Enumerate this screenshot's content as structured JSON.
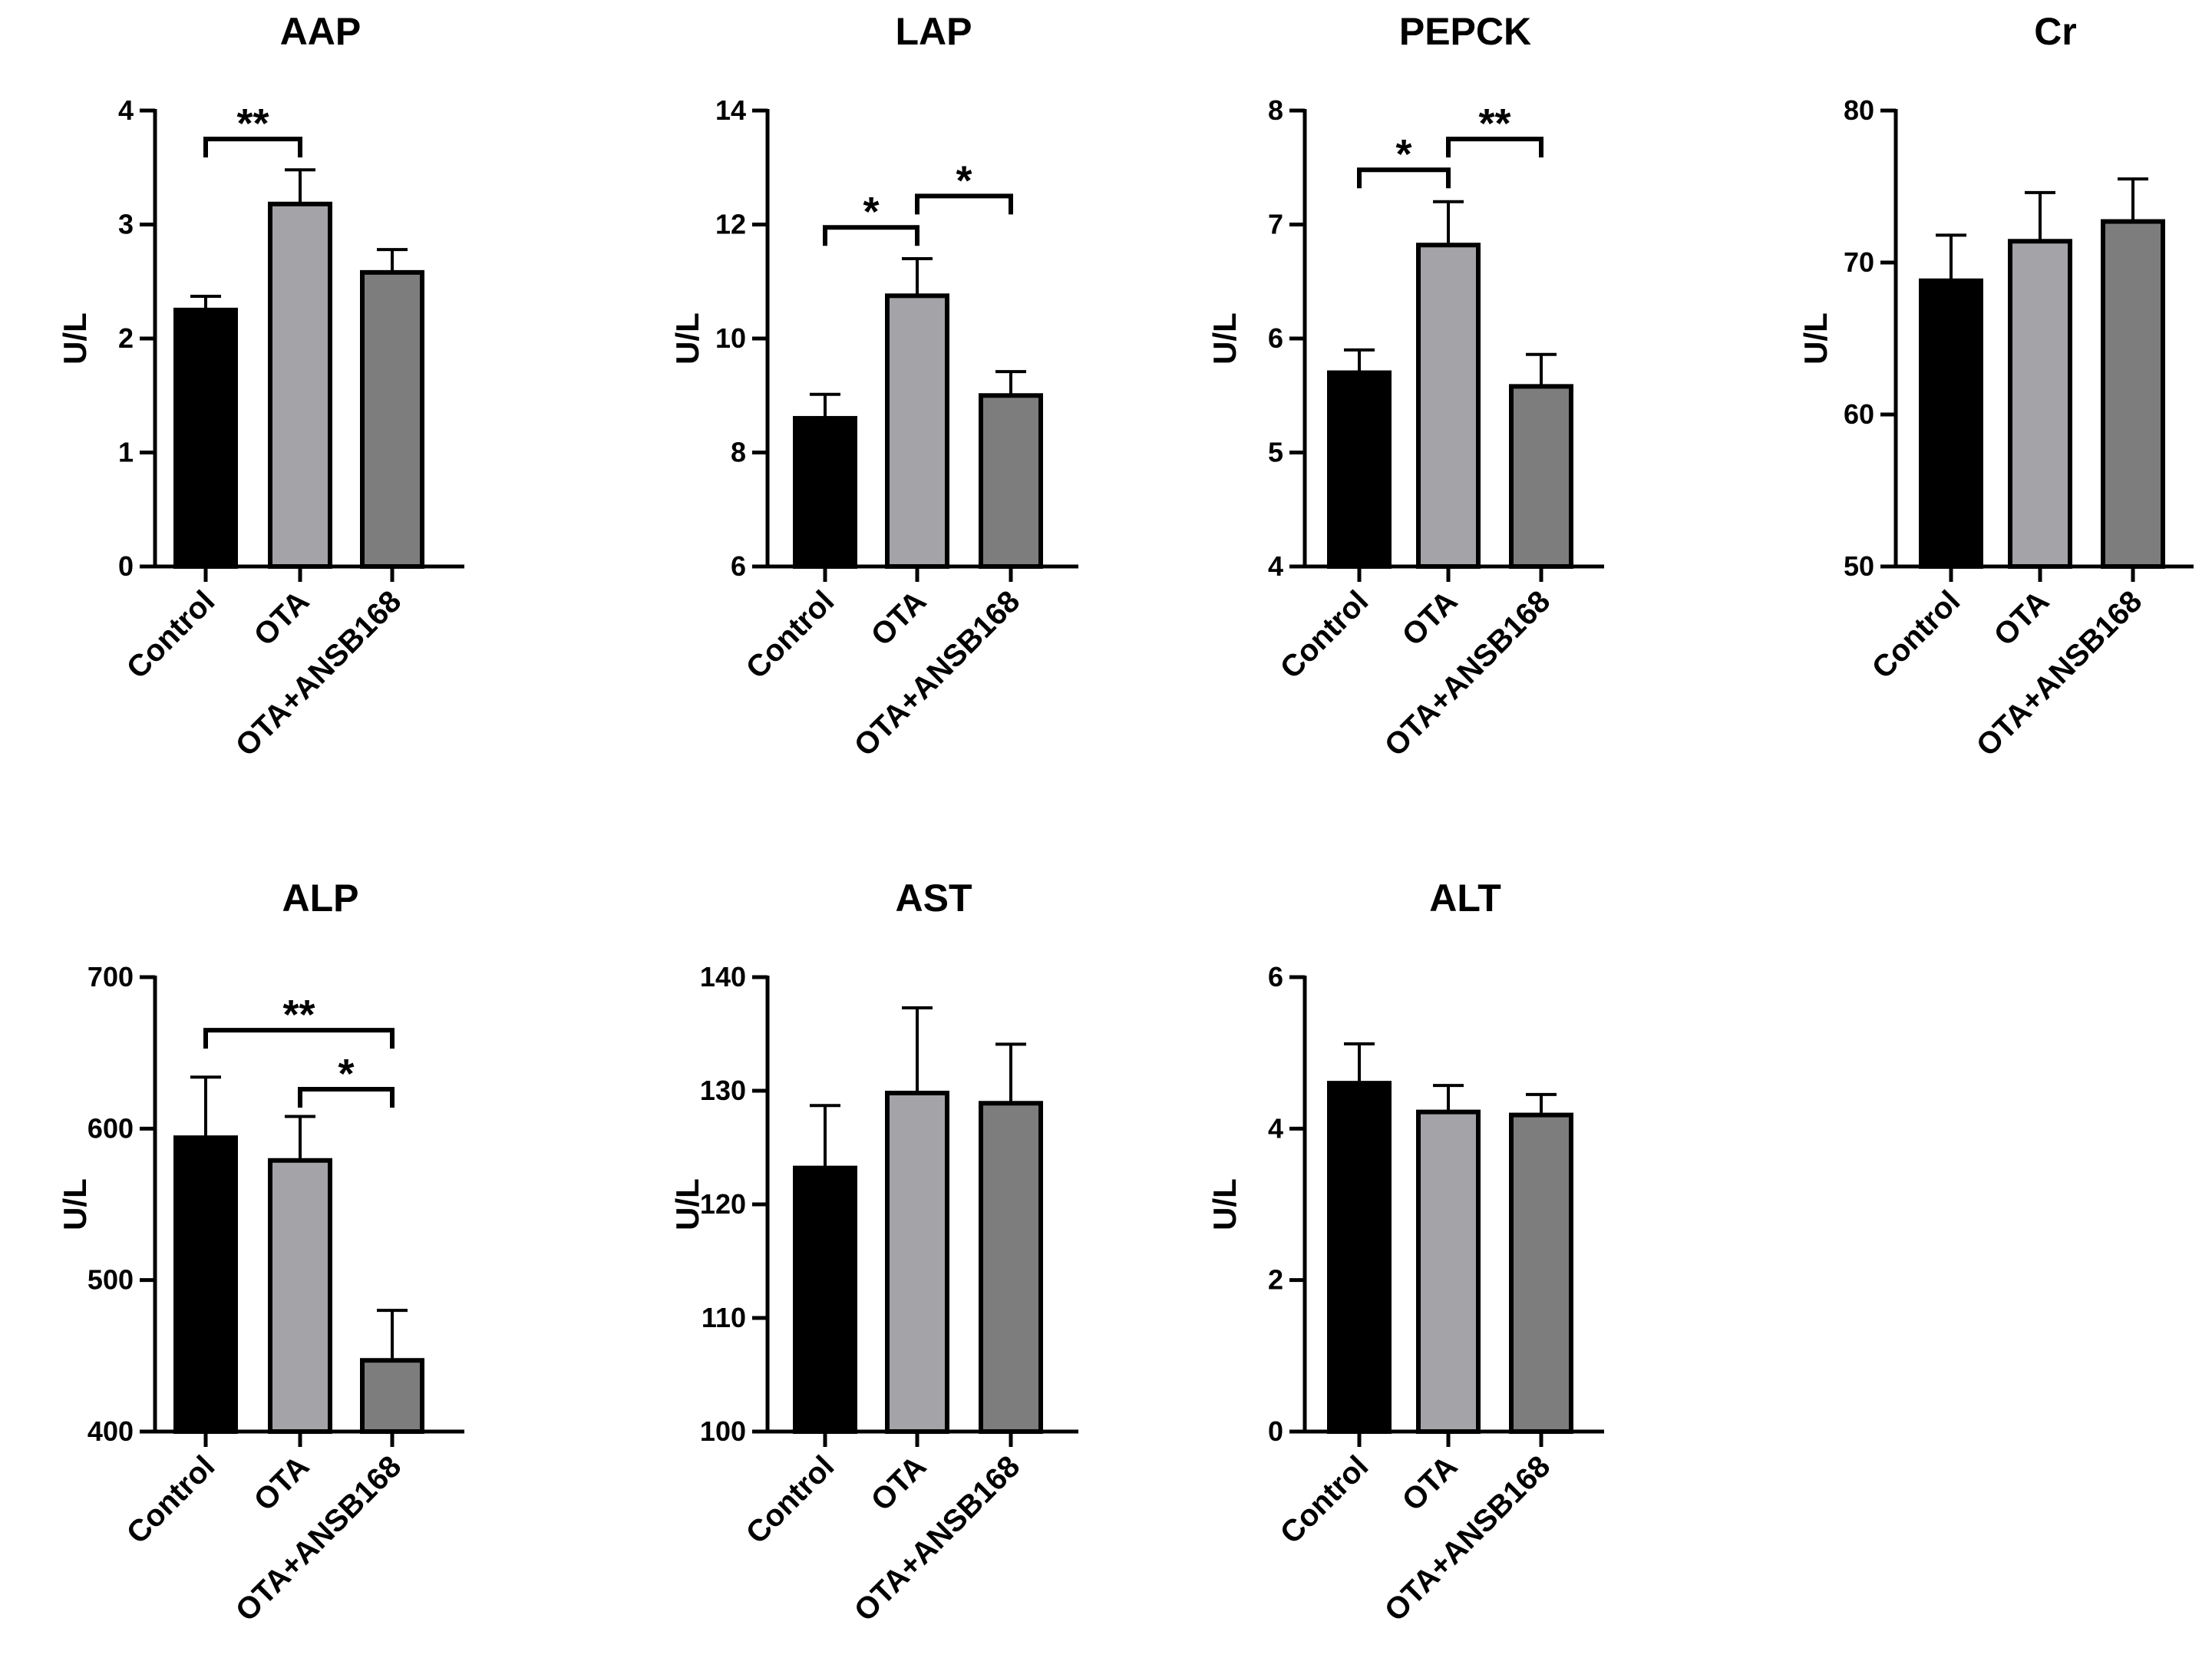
{
  "chart_data": [
    {
      "type": "bar",
      "title": "AAP",
      "ylabel": "U/L",
      "categories": [
        "Control",
        "OTA",
        "OTA+ANSB168"
      ],
      "values": [
        2.25,
        3.18,
        2.58
      ],
      "errors": [
        0.12,
        0.3,
        0.2
      ],
      "ylim": [
        0,
        4
      ],
      "yticks": [
        "0",
        "1",
        "2",
        "3",
        "4"
      ],
      "colors": [
        "#000000",
        "#a3a3a8",
        "#7d7d7d"
      ],
      "significance": [
        {
          "from": 0,
          "to": 1,
          "y": 3.75,
          "label": "**"
        }
      ]
    },
    {
      "type": "bar",
      "title": "LAP",
      "ylabel": "U/L",
      "categories": [
        "Control",
        "OTA",
        "OTA+ANSB168"
      ],
      "values": [
        8.6,
        10.75,
        9.0
      ],
      "errors": [
        0.42,
        0.65,
        0.42
      ],
      "ylim": [
        6,
        14
      ],
      "yticks": [
        "6",
        "8",
        "10",
        "12",
        "14"
      ],
      "colors": [
        "#000000",
        "#a3a3a8",
        "#7d7d7d"
      ],
      "significance": [
        {
          "from": 0,
          "to": 1,
          "y": 11.95,
          "label": "*"
        },
        {
          "from": 1,
          "to": 2,
          "y": 12.5,
          "label": "*"
        }
      ]
    },
    {
      "type": "bar",
      "title": "PEPCK",
      "ylabel": "U/L",
      "categories": [
        "Control",
        "OTA",
        "OTA+ANSB168"
      ],
      "values": [
        5.7,
        6.82,
        5.58
      ],
      "errors": [
        0.2,
        0.38,
        0.28
      ],
      "ylim": [
        4,
        8
      ],
      "yticks": [
        "4",
        "5",
        "6",
        "7",
        "8"
      ],
      "colors": [
        "#000000",
        "#a3a3a8",
        "#7d7d7d"
      ],
      "significance": [
        {
          "from": 0,
          "to": 1,
          "y": 7.48,
          "label": "*"
        },
        {
          "from": 1,
          "to": 2,
          "y": 7.75,
          "label": "**"
        }
      ]
    },
    {
      "type": "bar",
      "title": "Cr",
      "ylabel": "U/L",
      "categories": [
        "Control",
        "OTA",
        "OTA+ANSB168"
      ],
      "values": [
        68.8,
        71.4,
        72.7
      ],
      "errors": [
        3.0,
        3.2,
        2.8
      ],
      "ylim": [
        50,
        80
      ],
      "yticks": [
        "50",
        "60",
        "70",
        "80"
      ],
      "colors": [
        "#000000",
        "#a3a3a8",
        "#7d7d7d"
      ],
      "significance": []
    },
    {
      "type": "bar",
      "title": "ALP",
      "ylabel": "U/L",
      "categories": [
        "Control",
        "OTA",
        "OTA+ANSB168"
      ],
      "values": [
        594,
        579,
        447
      ],
      "errors": [
        40,
        29,
        33
      ],
      "ylim": [
        400,
        700
      ],
      "yticks": [
        "400",
        "500",
        "600",
        "700"
      ],
      "colors": [
        "#000000",
        "#a3a3a8",
        "#7d7d7d"
      ],
      "significance": [
        {
          "from": 0,
          "to": 2,
          "y": 665,
          "label": "**"
        },
        {
          "from": 1,
          "to": 2,
          "y": 626,
          "label": "*"
        }
      ]
    },
    {
      "type": "bar",
      "title": "AST",
      "ylabel": "U/L",
      "categories": [
        "Control",
        "OTA",
        "OTA+ANSB168"
      ],
      "values": [
        123.2,
        129.8,
        128.9
      ],
      "errors": [
        5.5,
        7.5,
        5.2
      ],
      "ylim": [
        100,
        140
      ],
      "yticks": [
        "100",
        "110",
        "120",
        "130",
        "140"
      ],
      "colors": [
        "#000000",
        "#a3a3a8",
        "#7d7d7d"
      ],
      "significance": []
    },
    {
      "type": "bar",
      "title": "ALT",
      "ylabel": "U/L",
      "categories": [
        "Control",
        "OTA",
        "OTA+ANSB168"
      ],
      "values": [
        4.6,
        4.22,
        4.18
      ],
      "errors": [
        0.52,
        0.35,
        0.27
      ],
      "ylim": [
        0,
        6
      ],
      "yticks": [
        "0",
        "2",
        "4",
        "6"
      ],
      "colors": [
        "#000000",
        "#a3a3a8",
        "#7d7d7d"
      ],
      "significance": []
    }
  ]
}
